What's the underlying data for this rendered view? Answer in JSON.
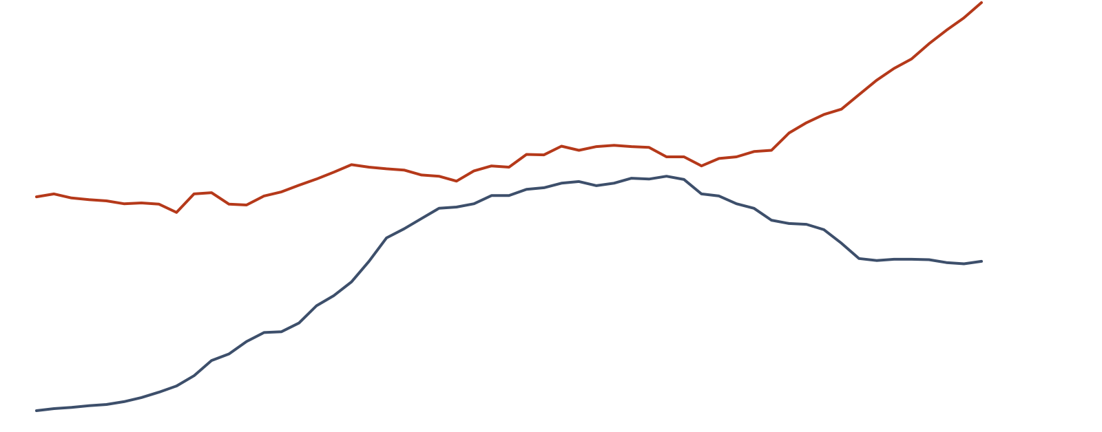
{
  "chart_data": {
    "type": "line",
    "categories": [
      null,
      null,
      null,
      null,
      null,
      null,
      null,
      null,
      null,
      null,
      null,
      null,
      null,
      null,
      null,
      null,
      null,
      null,
      null,
      null,
      null,
      null,
      null,
      null,
      null,
      null,
      null,
      null,
      null,
      null,
      null,
      null,
      null,
      null,
      null,
      null,
      null,
      null,
      null,
      null,
      null,
      null,
      null,
      null,
      null,
      null,
      null,
      null,
      null,
      null,
      null,
      null,
      null,
      null,
      null
    ],
    "ylim": [
      0,
      100
    ],
    "series": [
      {
        "color": "#b5391a",
        "values": [
          52.5,
          53.2,
          52.2,
          51.8,
          51.5,
          50.8,
          51,
          50.7,
          48.7,
          53.2,
          53.5,
          50.7,
          50.5,
          52.7,
          53.7,
          55.3,
          56.8,
          58.5,
          60.3,
          59.7,
          59.3,
          59,
          57.8,
          57.5,
          56.3,
          58.8,
          60,
          59.7,
          62.8,
          62.7,
          64.8,
          63.8,
          64.7,
          65,
          64.7,
          64.5,
          62.2,
          62.2,
          60,
          61.8,
          62.2,
          63.5,
          63.8,
          68,
          70.5,
          72.5,
          73.8,
          77.3,
          80.8,
          83.7,
          86,
          89.7,
          93,
          96,
          99.7
        ]
      },
      {
        "color": "#3d4f6b",
        "values": [
          0.5,
          1,
          1.3,
          1.7,
          2,
          2.7,
          3.7,
          5,
          6.5,
          9,
          12.7,
          14.3,
          17.3,
          19.5,
          19.7,
          21.8,
          26,
          28.5,
          31.8,
          36.8,
          42.5,
          44.7,
          47.2,
          49.7,
          50,
          50.8,
          52.8,
          52.8,
          54.3,
          54.7,
          55.8,
          56.2,
          55.2,
          55.8,
          57,
          56.8,
          57.5,
          56.7,
          53.2,
          52.7,
          50.8,
          49.7,
          46.8,
          46,
          45.8,
          44.5,
          41.2,
          37.5,
          37,
          37.3,
          37.3,
          37.2,
          36.5,
          36.2,
          36.8
        ]
      }
    ]
  }
}
